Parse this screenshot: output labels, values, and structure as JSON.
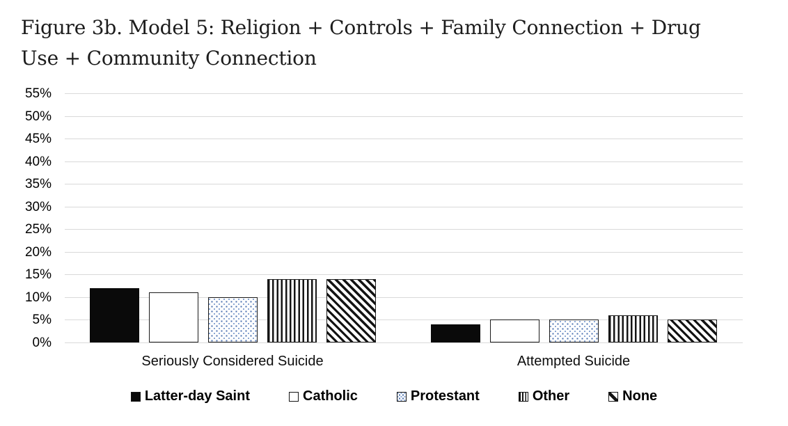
{
  "figure": {
    "title_lines": [
      "Figure 3b. Model 5: Religion + Controls + Family Connection + Drug",
      "Use + Community Connection"
    ]
  },
  "chart_data": {
    "type": "bar",
    "title": "Figure 3b. Model 5: Religion + Controls + Family Connection + Drug Use + Community Connection",
    "categories": [
      "Seriously Considered Suicide",
      "Attempted Suicide"
    ],
    "series": [
      {
        "name": "Latter-day Saint",
        "swatch": "solid-black",
        "values": [
          12,
          4
        ]
      },
      {
        "name": "Catholic",
        "swatch": "white",
        "values": [
          11,
          5
        ]
      },
      {
        "name": "Protestant",
        "swatch": "blue-dots",
        "values": [
          10,
          5
        ]
      },
      {
        "name": "Other",
        "swatch": "vertical-stripes",
        "values": [
          14,
          6
        ]
      },
      {
        "name": "None",
        "swatch": "diagonal-stripes",
        "values": [
          14,
          5
        ]
      }
    ],
    "y_axis": {
      "tick_labels": [
        "0%",
        "5%",
        "10%",
        "15%",
        "20%",
        "25%",
        "30%",
        "35%",
        "40%",
        "45%",
        "50%",
        "55%"
      ],
      "tick_values": [
        0,
        5,
        10,
        15,
        20,
        25,
        30,
        35,
        40,
        45,
        50,
        55
      ],
      "ylim": [
        0,
        55
      ],
      "unit": "%"
    },
    "grid": "horizontal",
    "legend_position": "bottom",
    "colors": {
      "bar_border": "#1a1a1a",
      "solid_fill": "#0a0a0a",
      "dot_color": "#4a6fae",
      "gridline": "#d9d9d9",
      "text": "#000000",
      "background": "#ffffff"
    }
  }
}
